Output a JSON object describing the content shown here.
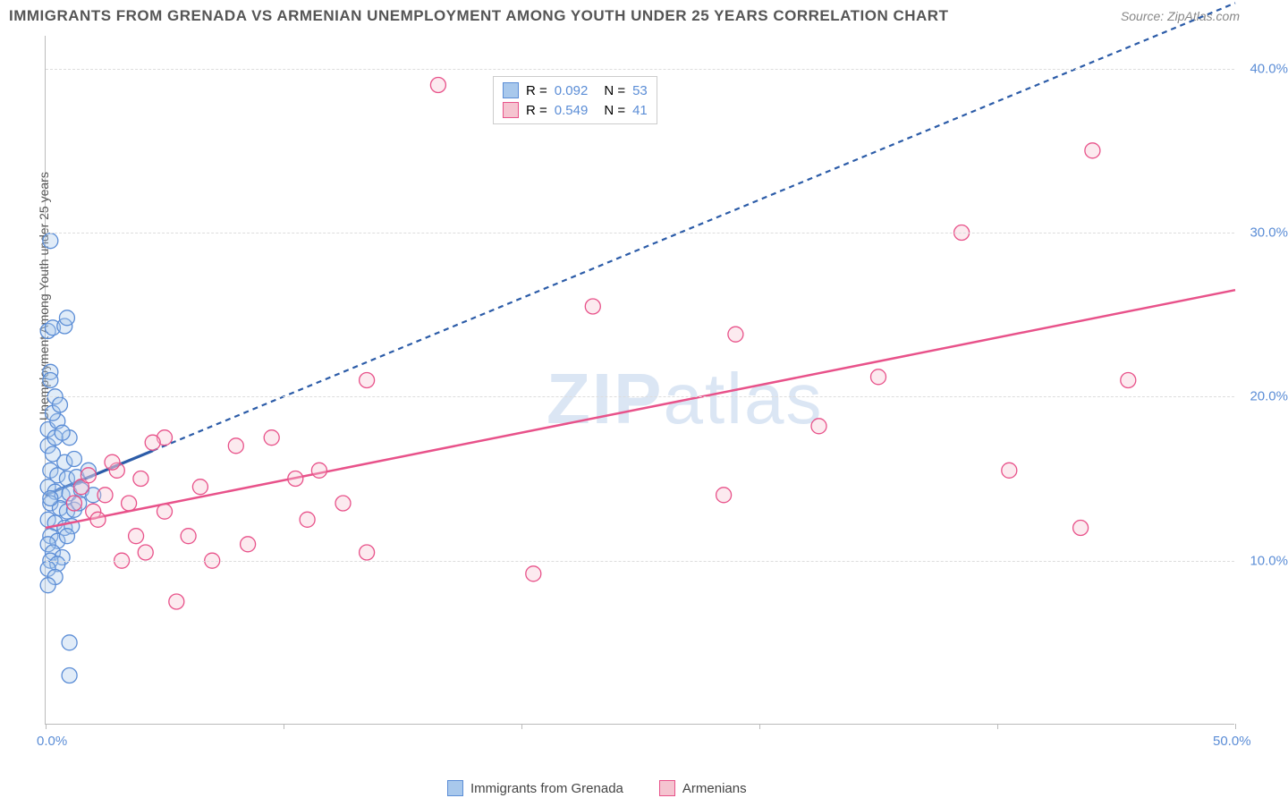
{
  "title": "IMMIGRANTS FROM GRENADA VS ARMENIAN UNEMPLOYMENT AMONG YOUTH UNDER 25 YEARS CORRELATION CHART",
  "source": "Source: ZipAtlas.com",
  "watermark_bold": "ZIP",
  "watermark_thin": "atlas",
  "ylabel": "Unemployment Among Youth under 25 years",
  "chart": {
    "type": "scatter",
    "xlim": [
      0,
      50
    ],
    "ylim": [
      0,
      42
    ],
    "xtick_positions": [
      0,
      10,
      20,
      30,
      40,
      50
    ],
    "xtick_labels": {
      "0": "0.0%",
      "50": "50.0%"
    },
    "ytick_positions": [
      10,
      20,
      30,
      40
    ],
    "ytick_labels": [
      "10.0%",
      "20.0%",
      "30.0%",
      "40.0%"
    ],
    "grid_y": [
      10,
      20,
      30,
      40
    ],
    "grid_color": "#dddddd",
    "background_color": "#ffffff",
    "marker_radius": 8.5,
    "marker_opacity": 0.35,
    "marker_stroke_width": 1.3
  },
  "series": [
    {
      "name": "Immigrants from Grenada",
      "color_fill": "#a8c8ec",
      "color_stroke": "#5b8dd6",
      "line_color": "#2c5ca8",
      "line_dash": "6,5",
      "trend_solid_xmax": 4.5,
      "line_width": 2.2,
      "r": "0.092",
      "n": "53",
      "trend": {
        "x0": 0,
        "y0": 14.0,
        "x1": 50,
        "y1": 44.0
      },
      "points": [
        [
          0.2,
          29.5
        ],
        [
          0.1,
          24.0
        ],
        [
          0.3,
          24.2
        ],
        [
          0.8,
          24.3
        ],
        [
          0.9,
          24.8
        ],
        [
          0.2,
          21.5
        ],
        [
          0.2,
          21.0
        ],
        [
          0.4,
          20.0
        ],
        [
          0.1,
          18.0
        ],
        [
          0.5,
          18.5
        ],
        [
          1.0,
          17.5
        ],
        [
          0.1,
          17.0
        ],
        [
          0.3,
          16.5
        ],
        [
          0.8,
          16.0
        ],
        [
          1.2,
          16.2
        ],
        [
          0.2,
          15.5
        ],
        [
          0.5,
          15.2
        ],
        [
          0.9,
          15.0
        ],
        [
          1.3,
          15.1
        ],
        [
          0.1,
          14.5
        ],
        [
          0.4,
          14.2
        ],
        [
          0.7,
          14.0
        ],
        [
          1.0,
          14.1
        ],
        [
          1.5,
          14.3
        ],
        [
          0.2,
          13.5
        ],
        [
          0.6,
          13.2
        ],
        [
          0.9,
          13.0
        ],
        [
          1.2,
          13.1
        ],
        [
          0.1,
          12.5
        ],
        [
          0.4,
          12.3
        ],
        [
          0.8,
          12.0
        ],
        [
          1.1,
          12.1
        ],
        [
          0.2,
          11.5
        ],
        [
          0.5,
          11.2
        ],
        [
          0.1,
          11.0
        ],
        [
          0.3,
          10.5
        ],
        [
          0.7,
          10.2
        ],
        [
          0.2,
          10.0
        ],
        [
          0.5,
          9.8
        ],
        [
          0.1,
          9.5
        ],
        [
          0.4,
          9.0
        ],
        [
          0.1,
          8.5
        ],
        [
          1.0,
          5.0
        ],
        [
          1.0,
          3.0
        ],
        [
          0.3,
          19.0
        ],
        [
          0.6,
          19.5
        ],
        [
          0.4,
          17.5
        ],
        [
          0.7,
          17.8
        ],
        [
          0.2,
          13.8
        ],
        [
          0.9,
          11.5
        ],
        [
          1.4,
          13.5
        ],
        [
          1.8,
          15.5
        ],
        [
          2.0,
          14.0
        ]
      ]
    },
    {
      "name": "Armenians",
      "color_fill": "#f5c4d0",
      "color_stroke": "#e8528a",
      "line_color": "#e8528a",
      "line_dash": "none",
      "line_width": 2.5,
      "r": "0.549",
      "n": "41",
      "trend": {
        "x0": 0,
        "y0": 12.0,
        "x1": 50,
        "y1": 26.5
      },
      "points": [
        [
          16.5,
          39.0
        ],
        [
          44.0,
          35.0
        ],
        [
          38.5,
          30.0
        ],
        [
          23.0,
          25.5
        ],
        [
          29.0,
          23.8
        ],
        [
          45.5,
          21.0
        ],
        [
          35.0,
          21.2
        ],
        [
          13.5,
          21.0
        ],
        [
          32.5,
          18.2
        ],
        [
          28.5,
          14.0
        ],
        [
          40.5,
          15.5
        ],
        [
          43.5,
          12.0
        ],
        [
          20.5,
          9.2
        ],
        [
          11.0,
          12.5
        ],
        [
          13.5,
          10.5
        ],
        [
          9.5,
          17.5
        ],
        [
          10.5,
          15.0
        ],
        [
          11.5,
          15.5
        ],
        [
          12.5,
          13.5
        ],
        [
          8.5,
          11.0
        ],
        [
          7.0,
          10.0
        ],
        [
          5.5,
          7.5
        ],
        [
          5.0,
          17.5
        ],
        [
          4.5,
          17.2
        ],
        [
          4.0,
          15.0
        ],
        [
          3.0,
          15.5
        ],
        [
          3.5,
          13.5
        ],
        [
          2.5,
          14.0
        ],
        [
          2.0,
          13.0
        ],
        [
          1.5,
          14.5
        ],
        [
          1.8,
          15.2
        ],
        [
          2.2,
          12.5
        ],
        [
          3.2,
          10.0
        ],
        [
          3.8,
          11.5
        ],
        [
          4.2,
          10.5
        ],
        [
          6.0,
          11.5
        ],
        [
          6.5,
          14.5
        ],
        [
          2.8,
          16.0
        ],
        [
          1.2,
          13.5
        ],
        [
          5.0,
          13.0
        ],
        [
          8.0,
          17.0
        ]
      ]
    }
  ],
  "legend": {
    "r_label": "R =",
    "n_label": "N ="
  }
}
